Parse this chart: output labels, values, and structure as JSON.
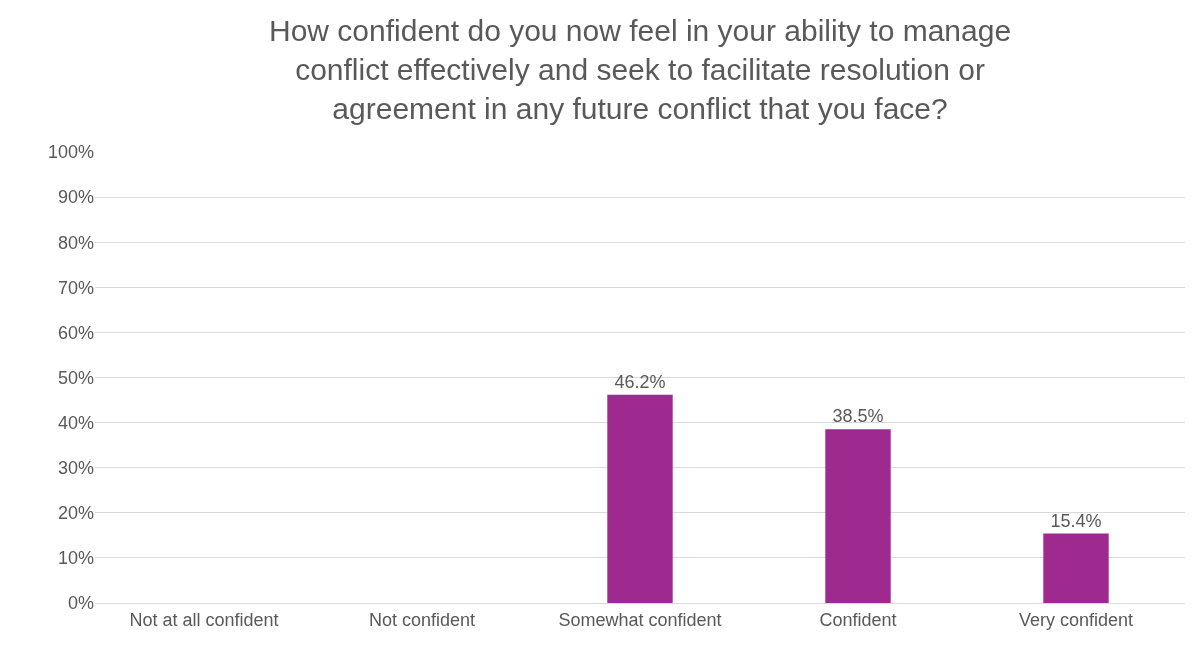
{
  "chart_data": {
    "type": "bar",
    "title": "How confident do you now feel in your ability to manage conflict effectively and seek to facilitate resolution or agreement in any future conflict that you face?",
    "categories": [
      "Not at all confident",
      "Not confident",
      "Somewhat confident",
      "Confident",
      "Very confident"
    ],
    "values": [
      0,
      0,
      46.2,
      38.5,
      15.4
    ],
    "value_labels": [
      null,
      null,
      "46.2%",
      "38.5%",
      "15.4%"
    ],
    "color": "#9e2a8f",
    "ylim": [
      0,
      100
    ],
    "yticks": [
      {
        "value": 0,
        "label": "0%"
      },
      {
        "value": 10,
        "label": "10%"
      },
      {
        "value": 20,
        "label": "20%"
      },
      {
        "value": 30,
        "label": "30%"
      },
      {
        "value": 40,
        "label": "40%"
      },
      {
        "value": 50,
        "label": "50%"
      },
      {
        "value": 60,
        "label": "60%"
      },
      {
        "value": 70,
        "label": "70%"
      },
      {
        "value": 80,
        "label": "80%"
      },
      {
        "value": 90,
        "label": "90%"
      },
      {
        "value": 100,
        "label": "100%"
      }
    ],
    "grid": "y"
  }
}
